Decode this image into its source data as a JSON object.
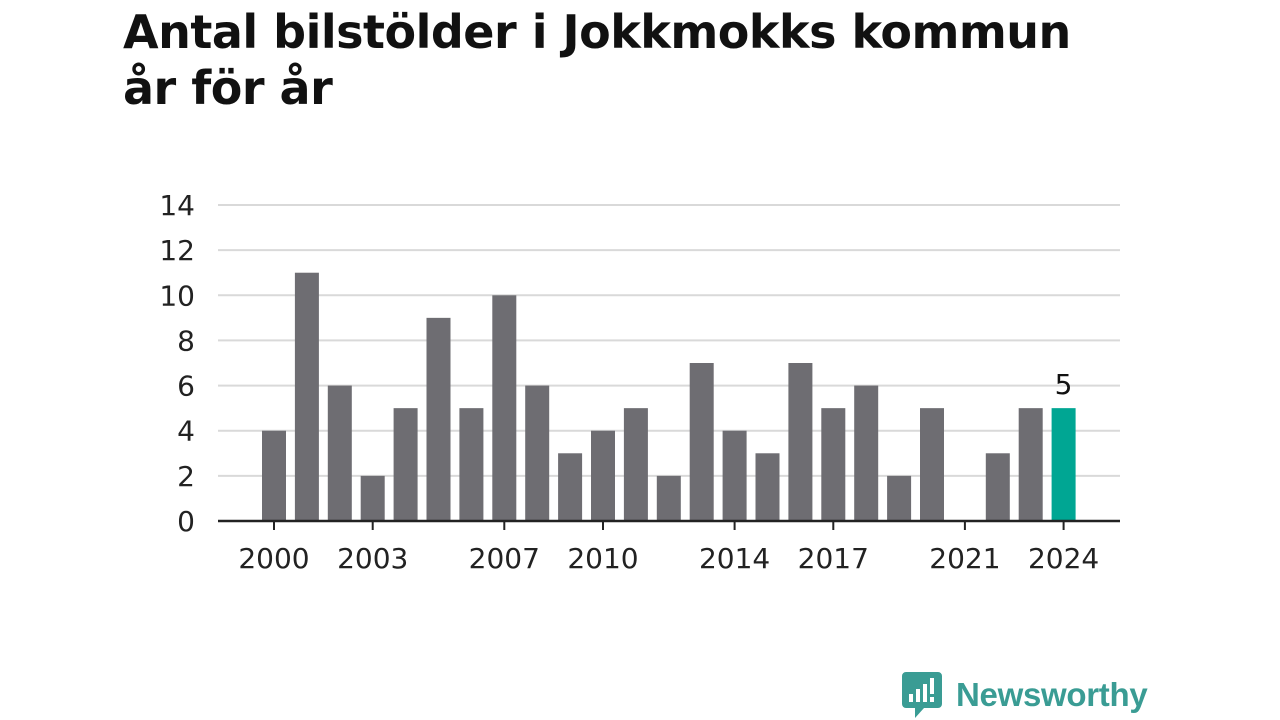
{
  "title_lines": [
    "Antal bilstölder i Jokkmokks kommun",
    "år för år"
  ],
  "brand": {
    "name": "Newsworthy",
    "color": "#3a9c94"
  },
  "chart_data": {
    "type": "bar",
    "categories": [
      2000,
      2001,
      2002,
      2003,
      2004,
      2005,
      2006,
      2007,
      2008,
      2009,
      2010,
      2011,
      2012,
      2013,
      2014,
      2015,
      2016,
      2017,
      2018,
      2019,
      2020,
      2021,
      2022,
      2023,
      2024
    ],
    "values": [
      4,
      11,
      6,
      2,
      5,
      9,
      5,
      10,
      6,
      3,
      4,
      5,
      2,
      7,
      4,
      3,
      7,
      5,
      6,
      2,
      5,
      0,
      3,
      5,
      5
    ],
    "x_tick_labels": [
      2000,
      2003,
      2007,
      2010,
      2014,
      2017,
      2021,
      2024
    ],
    "y_ticks": [
      0,
      2,
      4,
      6,
      8,
      10,
      12,
      14
    ],
    "ylim": [
      0,
      14
    ],
    "grid": true,
    "highlight": {
      "category": 2024,
      "label": "5"
    },
    "bar_color": "#6e6d72",
    "highlight_color": "#00a693",
    "grid_color": "#d9d9d9",
    "axis_color": "#222222"
  }
}
